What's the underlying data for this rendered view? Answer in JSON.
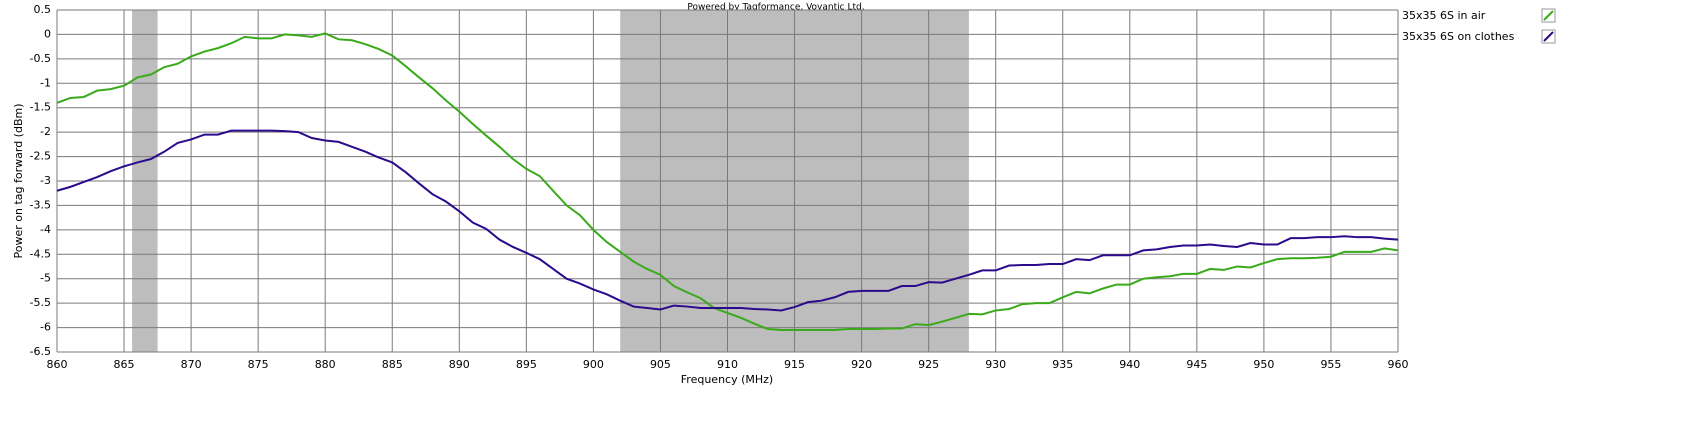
{
  "chart_data": {
    "type": "line",
    "title": "Powered by Tagformance, Voyantic Ltd.",
    "x_label": "Frequency (MHz)",
    "y_label": "Power on tag forward (dBm)",
    "x": [
      860,
      861,
      862,
      863,
      864,
      865,
      866,
      867,
      868,
      869,
      870,
      871,
      872,
      873,
      874,
      875,
      876,
      877,
      878,
      879,
      880,
      881,
      882,
      883,
      884,
      885,
      886,
      887,
      888,
      889,
      890,
      891,
      892,
      893,
      894,
      895,
      896,
      897,
      898,
      899,
      900,
      901,
      902,
      903,
      904,
      905,
      906,
      907,
      908,
      909,
      910,
      911,
      912,
      913,
      914,
      915,
      916,
      917,
      918,
      919,
      920,
      921,
      922,
      923,
      924,
      925,
      926,
      927,
      928,
      929,
      930,
      931,
      932,
      933,
      934,
      935,
      936,
      937,
      938,
      939,
      940,
      941,
      942,
      943,
      944,
      945,
      946,
      947,
      948,
      949,
      950,
      951,
      952,
      953,
      954,
      955,
      956,
      957,
      958,
      959,
      960
    ],
    "series": [
      {
        "name": "35x35 6S in air",
        "color": "#3aaa1a",
        "values": [
          -1.4,
          -1.3,
          -1.28,
          -1.15,
          -1.12,
          -1.05,
          -0.88,
          -0.82,
          -0.67,
          -0.6,
          -0.45,
          -0.35,
          -0.28,
          -0.18,
          -0.05,
          -0.08,
          -0.08,
          0.0,
          -0.02,
          -0.05,
          0.02,
          -0.1,
          -0.12,
          -0.2,
          -0.3,
          -0.43,
          -0.65,
          -0.88,
          -1.1,
          -1.35,
          -1.58,
          -1.83,
          -2.07,
          -2.3,
          -2.55,
          -2.75,
          -2.9,
          -3.2,
          -3.5,
          -3.7,
          -4.0,
          -4.25,
          -4.45,
          -4.65,
          -4.8,
          -4.92,
          -5.15,
          -5.28,
          -5.4,
          -5.6,
          -5.7,
          -5.8,
          -5.92,
          -6.03,
          -6.05,
          -6.05,
          -6.05,
          -6.05,
          -6.05,
          -6.03,
          -6.03,
          -6.03,
          -6.02,
          -6.02,
          -5.93,
          -5.95,
          -5.88,
          -5.8,
          -5.72,
          -5.73,
          -5.65,
          -5.62,
          -5.52,
          -5.5,
          -5.5,
          -5.38,
          -5.27,
          -5.3,
          -5.2,
          -5.12,
          -5.12,
          -5.0,
          -4.97,
          -4.95,
          -4.9,
          -4.9,
          -4.8,
          -4.82,
          -4.75,
          -4.77,
          -4.68,
          -4.6,
          -4.58,
          -4.58,
          -4.57,
          -4.55,
          -4.45,
          -4.45,
          -4.45,
          -4.38,
          -4.42
        ]
      },
      {
        "name": "35x35 6S on clothes",
        "color": "#2b0a8c",
        "values": [
          -3.2,
          -3.12,
          -3.02,
          -2.92,
          -2.8,
          -2.7,
          -2.62,
          -2.55,
          -2.4,
          -2.22,
          -2.15,
          -2.05,
          -2.05,
          -1.97,
          -1.97,
          -1.97,
          -1.97,
          -1.98,
          -2.0,
          -2.12,
          -2.17,
          -2.2,
          -2.3,
          -2.4,
          -2.52,
          -2.62,
          -2.82,
          -3.05,
          -3.27,
          -3.42,
          -3.62,
          -3.85,
          -3.98,
          -4.2,
          -4.35,
          -4.47,
          -4.6,
          -4.8,
          -5.0,
          -5.1,
          -5.22,
          -5.32,
          -5.45,
          -5.57,
          -5.6,
          -5.63,
          -5.55,
          -5.57,
          -5.6,
          -5.6,
          -5.6,
          -5.6,
          -5.62,
          -5.63,
          -5.65,
          -5.58,
          -5.48,
          -5.45,
          -5.38,
          -5.27,
          -5.25,
          -5.25,
          -5.25,
          -5.15,
          -5.15,
          -5.07,
          -5.08,
          -5.0,
          -4.92,
          -4.83,
          -4.83,
          -4.73,
          -4.72,
          -4.72,
          -4.7,
          -4.7,
          -4.6,
          -4.62,
          -4.52,
          -4.52,
          -4.52,
          -4.42,
          -4.4,
          -4.35,
          -4.32,
          -4.32,
          -4.3,
          -4.33,
          -4.35,
          -4.27,
          -4.3,
          -4.3,
          -4.17,
          -4.17,
          -4.15,
          -4.15,
          -4.13,
          -4.15,
          -4.15,
          -4.18,
          -4.2
        ]
      }
    ],
    "shaded_regions": [
      [
        865.6,
        867.5
      ],
      [
        902,
        928
      ]
    ],
    "shade_color": "#bdbdbd",
    "xlim": [
      860,
      960
    ],
    "xticks": [
      860,
      865,
      870,
      875,
      880,
      885,
      890,
      895,
      900,
      905,
      910,
      915,
      920,
      925,
      930,
      935,
      940,
      945,
      950,
      955,
      960
    ],
    "ylim": [
      -6.5,
      0.5
    ],
    "yticks": [
      0.5,
      0,
      -0.5,
      -1,
      -1.5,
      -2,
      -2.5,
      -3,
      -3.5,
      -4,
      -4.5,
      -5,
      -5.5,
      -6,
      -6.5
    ],
    "grid": true,
    "legend": "right"
  }
}
